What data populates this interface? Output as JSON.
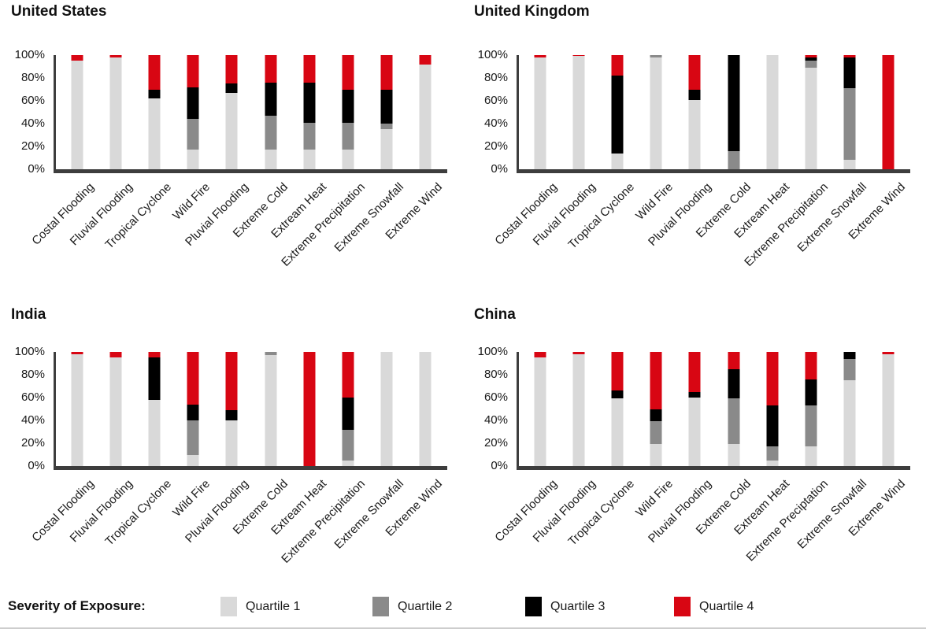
{
  "legend": {
    "title": "Severity of Exposure:",
    "items": [
      {
        "label": "Quartile 1",
        "color": "#D9D9D9"
      },
      {
        "label": "Quartile 2",
        "color": "#8A8A8A"
      },
      {
        "label": "Quartile 3",
        "color": "#000000"
      },
      {
        "label": "Quartile 4",
        "color": "#D80613"
      }
    ]
  },
  "y_axis": {
    "ticks": [
      "100%",
      "80%",
      "60%",
      "40%",
      "20%",
      "0%"
    ]
  },
  "chart_data": [
    {
      "type": "bar",
      "stacked": true,
      "title": "United States",
      "categories": [
        "Costal Flooding",
        "Fluvial Flooding",
        "Tropical Cyclone",
        "Wild Fire",
        "Pluvial Flooding",
        "Extreme Cold",
        "Extream Heat",
        "Extreme Precipitation",
        "Extreme Snowfall",
        "Extreme Wind"
      ],
      "series": [
        {
          "name": "Quartile 1",
          "color": "#D9D9D9",
          "values": [
            95,
            98,
            62,
            17,
            67,
            17,
            17,
            17,
            35,
            92
          ]
        },
        {
          "name": "Quartile 2",
          "color": "#8A8A8A",
          "values": [
            0,
            0,
            0,
            27,
            0,
            30,
            24,
            24,
            5,
            0
          ]
        },
        {
          "name": "Quartile 3",
          "color": "#000000",
          "values": [
            0,
            0,
            8,
            28,
            8,
            29,
            35,
            29,
            30,
            0
          ]
        },
        {
          "name": "Quartile 4",
          "color": "#D80613",
          "values": [
            5,
            2,
            30,
            28,
            25,
            24,
            24,
            30,
            30,
            8
          ]
        }
      ],
      "ylabel": "",
      "ylim": [
        0,
        100
      ],
      "y_tick_labels": [
        "0%",
        "20%",
        "40%",
        "60%",
        "80%",
        "100%"
      ],
      "grid": false,
      "legend_position": "bottom"
    },
    {
      "type": "bar",
      "stacked": true,
      "title": "United Kingdom",
      "categories": [
        "Costal Flooding",
        "Fluvial Flooding",
        "Tropical Cyclone",
        "Wild Fire",
        "Pluvial Flooding",
        "Extreme Cold",
        "Extream Heat",
        "Extreme Precipitation",
        "Extreme Snowfall",
        "Extreme Wind"
      ],
      "series": [
        {
          "name": "Quartile 1",
          "color": "#D9D9D9",
          "values": [
            98,
            99,
            14,
            98,
            61,
            0,
            100,
            89,
            8,
            0
          ]
        },
        {
          "name": "Quartile 2",
          "color": "#8A8A8A",
          "values": [
            0,
            0,
            0,
            2,
            0,
            16,
            0,
            6,
            63,
            0
          ]
        },
        {
          "name": "Quartile 3",
          "color": "#000000",
          "values": [
            0,
            0,
            68,
            0,
            9,
            84,
            0,
            3,
            27,
            0
          ]
        },
        {
          "name": "Quartile 4",
          "color": "#D80613",
          "values": [
            2,
            1,
            18,
            0,
            30,
            0,
            0,
            2,
            2,
            100
          ]
        }
      ],
      "ylabel": "",
      "ylim": [
        0,
        100
      ],
      "y_tick_labels": [
        "0%",
        "20%",
        "40%",
        "60%",
        "80%",
        "100%"
      ],
      "grid": false,
      "legend_position": "bottom"
    },
    {
      "type": "bar",
      "stacked": true,
      "title": "India",
      "categories": [
        "Costal Flooding",
        "Fluvial Flooding",
        "Tropical Cyclone",
        "Wild Fire",
        "Pluvial Flooding",
        "Extreme Cold",
        "Extream Heat",
        "Extreme Precipitation",
        "Extreme Snowfall",
        "Extreme Wind"
      ],
      "series": [
        {
          "name": "Quartile 1",
          "color": "#D9D9D9",
          "values": [
            98,
            95,
            58,
            10,
            40,
            97,
            0,
            5,
            100,
            100
          ]
        },
        {
          "name": "Quartile 2",
          "color": "#8A8A8A",
          "values": [
            0,
            0,
            0,
            30,
            0,
            3,
            0,
            27,
            0,
            0
          ]
        },
        {
          "name": "Quartile 3",
          "color": "#000000",
          "values": [
            0,
            0,
            37,
            14,
            9,
            0,
            0,
            28,
            0,
            0
          ]
        },
        {
          "name": "Quartile 4",
          "color": "#D80613",
          "values": [
            2,
            5,
            5,
            46,
            51,
            0,
            100,
            40,
            0,
            0
          ]
        }
      ],
      "ylabel": "",
      "ylim": [
        0,
        100
      ],
      "y_tick_labels": [
        "0%",
        "20%",
        "40%",
        "60%",
        "80%",
        "100%"
      ],
      "grid": false,
      "legend_position": "bottom"
    },
    {
      "type": "bar",
      "stacked": true,
      "title": "China",
      "categories": [
        "Costal Flooding",
        "Fluvial Flooding",
        "Tropical Cyclone",
        "Wild Fire",
        "Pluvial Flooding",
        "Extreme Cold",
        "Extream Heat",
        "Extreme Preciptation",
        "Extreme Snowfall",
        "Extreme Wind"
      ],
      "series": [
        {
          "name": "Quartile 1",
          "color": "#D9D9D9",
          "values": [
            95,
            98,
            59,
            19,
            60,
            19,
            5,
            17,
            75,
            98
          ]
        },
        {
          "name": "Quartile 2",
          "color": "#8A8A8A",
          "values": [
            0,
            0,
            0,
            20,
            0,
            40,
            12,
            36,
            19,
            0
          ]
        },
        {
          "name": "Quartile 3",
          "color": "#000000",
          "values": [
            0,
            0,
            7,
            11,
            5,
            26,
            36,
            23,
            6,
            0
          ]
        },
        {
          "name": "Quartile 4",
          "color": "#D80613",
          "values": [
            5,
            2,
            34,
            50,
            35,
            15,
            47,
            24,
            0,
            2
          ]
        }
      ],
      "ylabel": "",
      "ylim": [
        0,
        100
      ],
      "y_tick_labels": [
        "0%",
        "20%",
        "40%",
        "60%",
        "80%",
        "100%"
      ],
      "grid": false,
      "legend_position": "bottom"
    }
  ]
}
